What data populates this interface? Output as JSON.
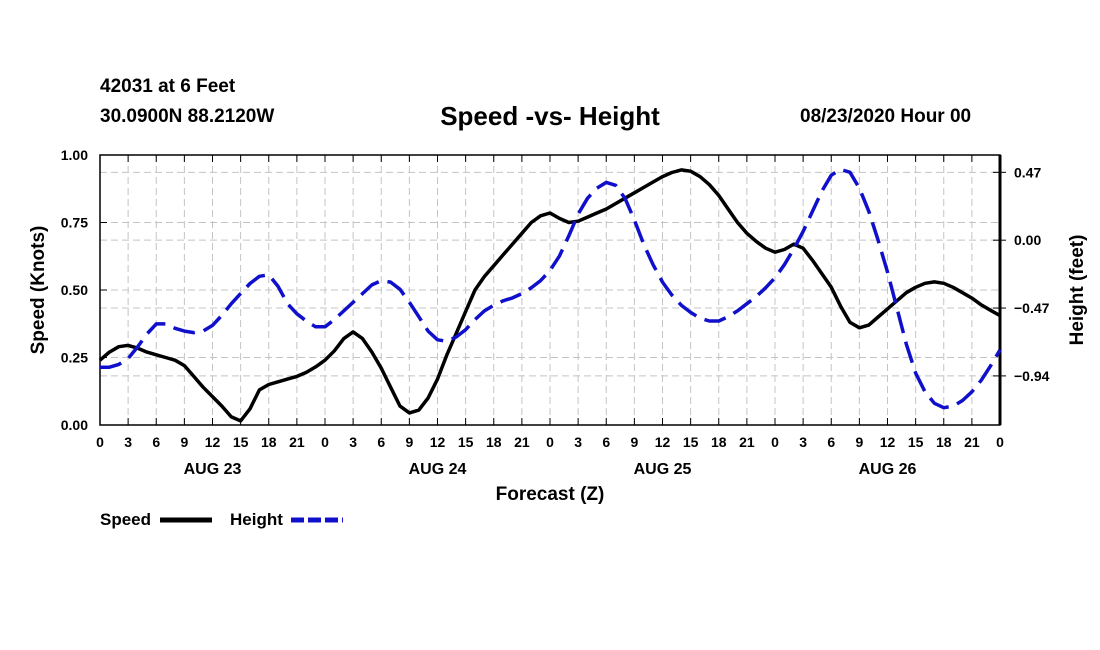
{
  "header": {
    "station": "42031 at 6 Feet",
    "coords": "30.0900N 88.2120W",
    "datetime": "08/23/2020 Hour 00"
  },
  "legend": {
    "speed_label": "Speed",
    "height_label": "Height"
  },
  "chart_data": {
    "type": "line",
    "title": "Speed -vs- Height",
    "xlabel": "Forecast (Z)",
    "ylabel": "Speed (Knots)",
    "y2label": "Height (feet)",
    "colors": {
      "speed": "#000000",
      "height": "#1010cc"
    },
    "x_tick_labels": [
      "0",
      "3",
      "6",
      "9",
      "12",
      "15",
      "18",
      "21",
      "0",
      "3",
      "6",
      "9",
      "12",
      "15",
      "18",
      "21",
      "0",
      "3",
      "6",
      "9",
      "12",
      "15",
      "18",
      "21",
      "0",
      "3",
      "6",
      "9",
      "12",
      "15",
      "18",
      "21",
      "0"
    ],
    "day_labels": [
      {
        "label": "AUG 23",
        "hour": 12
      },
      {
        "label": "AUG 24",
        "hour": 36
      },
      {
        "label": "AUG 25",
        "hour": 60
      },
      {
        "label": "AUG 26",
        "hour": 84
      }
    ],
    "xlim": [
      0,
      96
    ],
    "ylim": [
      0,
      1.0
    ],
    "yticks": [
      "0.00",
      "0.25",
      "0.50",
      "0.75",
      "1.00"
    ],
    "y2lim": [
      -1.28,
      0.59
    ],
    "y2ticks": [
      {
        "value": 0.47,
        "label": "0.47"
      },
      {
        "value": 0.0,
        "label": "0.00"
      },
      {
        "value": -0.47,
        "label": "−0.47"
      },
      {
        "value": -0.94,
        "label": "−0.94"
      }
    ],
    "series": [
      {
        "name": "Speed",
        "axis": "left",
        "style": "solid",
        "points": [
          [
            0,
            0.24
          ],
          [
            1,
            0.27
          ],
          [
            2,
            0.29
          ],
          [
            3,
            0.295
          ],
          [
            4,
            0.285
          ],
          [
            5,
            0.27
          ],
          [
            6,
            0.26
          ],
          [
            7,
            0.25
          ],
          [
            8,
            0.24
          ],
          [
            9,
            0.22
          ],
          [
            10,
            0.18
          ],
          [
            11,
            0.14
          ],
          [
            12,
            0.105
          ],
          [
            13,
            0.07
          ],
          [
            14,
            0.03
          ],
          [
            15,
            0.015
          ],
          [
            16,
            0.06
          ],
          [
            17,
            0.13
          ],
          [
            18,
            0.15
          ],
          [
            19,
            0.16
          ],
          [
            20,
            0.17
          ],
          [
            21,
            0.18
          ],
          [
            22,
            0.195
          ],
          [
            23,
            0.215
          ],
          [
            24,
            0.24
          ],
          [
            25,
            0.275
          ],
          [
            26,
            0.32
          ],
          [
            27,
            0.345
          ],
          [
            28,
            0.32
          ],
          [
            29,
            0.27
          ],
          [
            30,
            0.21
          ],
          [
            31,
            0.14
          ],
          [
            32,
            0.07
          ],
          [
            33,
            0.045
          ],
          [
            34,
            0.055
          ],
          [
            35,
            0.1
          ],
          [
            36,
            0.17
          ],
          [
            37,
            0.26
          ],
          [
            38,
            0.34
          ],
          [
            39,
            0.42
          ],
          [
            40,
            0.5
          ],
          [
            41,
            0.55
          ],
          [
            42,
            0.59
          ],
          [
            43,
            0.63
          ],
          [
            44,
            0.67
          ],
          [
            45,
            0.71
          ],
          [
            46,
            0.75
          ],
          [
            47,
            0.775
          ],
          [
            48,
            0.785
          ],
          [
            49,
            0.765
          ],
          [
            50,
            0.75
          ],
          [
            51,
            0.755
          ],
          [
            52,
            0.77
          ],
          [
            53,
            0.785
          ],
          [
            54,
            0.8
          ],
          [
            55,
            0.82
          ],
          [
            56,
            0.84
          ],
          [
            57,
            0.86
          ],
          [
            58,
            0.88
          ],
          [
            59,
            0.9
          ],
          [
            60,
            0.92
          ],
          [
            61,
            0.935
          ],
          [
            62,
            0.945
          ],
          [
            63,
            0.94
          ],
          [
            64,
            0.92
          ],
          [
            65,
            0.89
          ],
          [
            66,
            0.85
          ],
          [
            67,
            0.8
          ],
          [
            68,
            0.75
          ],
          [
            69,
            0.71
          ],
          [
            70,
            0.68
          ],
          [
            71,
            0.655
          ],
          [
            72,
            0.64
          ],
          [
            73,
            0.65
          ],
          [
            74,
            0.67
          ],
          [
            75,
            0.655
          ],
          [
            76,
            0.61
          ],
          [
            77,
            0.56
          ],
          [
            78,
            0.51
          ],
          [
            79,
            0.44
          ],
          [
            80,
            0.38
          ],
          [
            81,
            0.36
          ],
          [
            82,
            0.37
          ],
          [
            83,
            0.4
          ],
          [
            84,
            0.43
          ],
          [
            85,
            0.46
          ],
          [
            86,
            0.49
          ],
          [
            87,
            0.51
          ],
          [
            88,
            0.525
          ],
          [
            89,
            0.53
          ],
          [
            90,
            0.525
          ],
          [
            91,
            0.51
          ],
          [
            92,
            0.49
          ],
          [
            93,
            0.47
          ],
          [
            94,
            0.445
          ],
          [
            95,
            0.425
          ],
          [
            96,
            0.405
          ]
        ]
      },
      {
        "name": "Height",
        "axis": "right",
        "style": "dashed",
        "points": [
          [
            0,
            -0.88
          ],
          [
            1,
            -0.88
          ],
          [
            2,
            -0.86
          ],
          [
            3,
            -0.82
          ],
          [
            4,
            -0.74
          ],
          [
            5,
            -0.65
          ],
          [
            6,
            -0.58
          ],
          [
            7,
            -0.58
          ],
          [
            8,
            -0.61
          ],
          [
            9,
            -0.63
          ],
          [
            10,
            -0.64
          ],
          [
            11,
            -0.63
          ],
          [
            12,
            -0.59
          ],
          [
            13,
            -0.52
          ],
          [
            14,
            -0.44
          ],
          [
            15,
            -0.37
          ],
          [
            16,
            -0.3
          ],
          [
            17,
            -0.25
          ],
          [
            18,
            -0.24
          ],
          [
            19,
            -0.32
          ],
          [
            20,
            -0.44
          ],
          [
            21,
            -0.51
          ],
          [
            22,
            -0.56
          ],
          [
            23,
            -0.6
          ],
          [
            24,
            -0.6
          ],
          [
            25,
            -0.55
          ],
          [
            26,
            -0.49
          ],
          [
            27,
            -0.43
          ],
          [
            28,
            -0.37
          ],
          [
            29,
            -0.31
          ],
          [
            30,
            -0.28
          ],
          [
            31,
            -0.29
          ],
          [
            32,
            -0.34
          ],
          [
            33,
            -0.43
          ],
          [
            34,
            -0.53
          ],
          [
            35,
            -0.63
          ],
          [
            36,
            -0.69
          ],
          [
            37,
            -0.7
          ],
          [
            38,
            -0.67
          ],
          [
            39,
            -0.62
          ],
          [
            40,
            -0.55
          ],
          [
            41,
            -0.49
          ],
          [
            42,
            -0.45
          ],
          [
            43,
            -0.42
          ],
          [
            44,
            -0.4
          ],
          [
            45,
            -0.37
          ],
          [
            46,
            -0.33
          ],
          [
            47,
            -0.28
          ],
          [
            48,
            -0.21
          ],
          [
            49,
            -0.11
          ],
          [
            50,
            0.03
          ],
          [
            51,
            0.18
          ],
          [
            52,
            0.29
          ],
          [
            53,
            0.36
          ],
          [
            54,
            0.4
          ],
          [
            55,
            0.38
          ],
          [
            56,
            0.29
          ],
          [
            57,
            0.14
          ],
          [
            58,
            -0.03
          ],
          [
            59,
            -0.17
          ],
          [
            60,
            -0.29
          ],
          [
            61,
            -0.38
          ],
          [
            62,
            -0.45
          ],
          [
            63,
            -0.5
          ],
          [
            64,
            -0.54
          ],
          [
            65,
            -0.56
          ],
          [
            66,
            -0.56
          ],
          [
            67,
            -0.53
          ],
          [
            68,
            -0.49
          ],
          [
            69,
            -0.44
          ],
          [
            70,
            -0.39
          ],
          [
            71,
            -0.33
          ],
          [
            72,
            -0.26
          ],
          [
            73,
            -0.17
          ],
          [
            74,
            -0.06
          ],
          [
            75,
            0.06
          ],
          [
            76,
            0.2
          ],
          [
            77,
            0.34
          ],
          [
            78,
            0.45
          ],
          [
            79,
            0.49
          ],
          [
            80,
            0.47
          ],
          [
            81,
            0.36
          ],
          [
            82,
            0.2
          ],
          [
            83,
            0.0
          ],
          [
            84,
            -0.22
          ],
          [
            85,
            -0.47
          ],
          [
            86,
            -0.72
          ],
          [
            87,
            -0.92
          ],
          [
            88,
            -1.05
          ],
          [
            89,
            -1.13
          ],
          [
            90,
            -1.16
          ],
          [
            91,
            -1.15
          ],
          [
            92,
            -1.11
          ],
          [
            93,
            -1.05
          ],
          [
            94,
            -0.97
          ],
          [
            95,
            -0.87
          ],
          [
            96,
            -0.76
          ]
        ]
      }
    ]
  }
}
